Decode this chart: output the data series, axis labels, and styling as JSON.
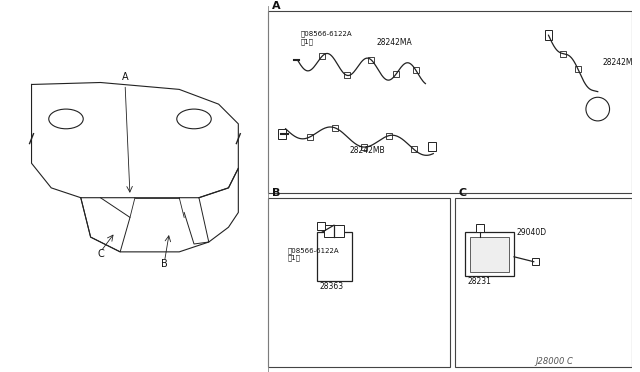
{
  "background_color": "#ffffff",
  "border_color": "#000000",
  "line_color": "#333333",
  "text_color": "#000000",
  "fig_width": 6.4,
  "fig_height": 3.72,
  "dpi": 100,
  "diagram_title": "",
  "part_number_footer": "J28000 C",
  "sections": {
    "car_label_A": "A",
    "car_label_B": "B",
    "car_label_C": "C",
    "section_A_label": "A",
    "section_B_label": "B",
    "section_C_label": "C"
  },
  "part_labels": {
    "feeder_A1": "28242MA",
    "feeder_A2": "28242MB",
    "feeder_A3": "28242M",
    "screw_A1": "傃08566-6122A\n（1）",
    "screw_B1": "傃08566-6122A\n（1）",
    "amplifier_B": "28363",
    "antenna_C1": "29040D",
    "antenna_C2": "28231"
  },
  "colors": {
    "diagram_bg": "#f5f5f5",
    "part_line": "#222222",
    "box_line": "#444444",
    "label_text": "#111111"
  }
}
